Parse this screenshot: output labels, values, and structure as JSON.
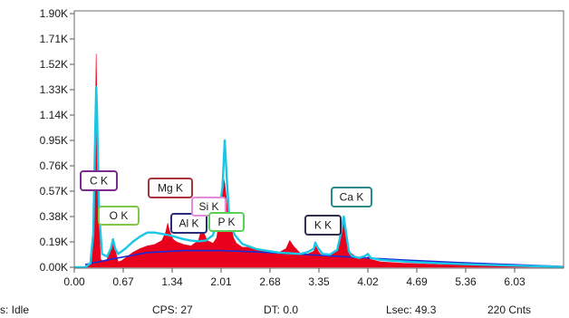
{
  "chart_data": {
    "type": "area",
    "title": "",
    "xlabel": "",
    "ylabel": "",
    "xlim": [
      0.0,
      6.7
    ],
    "ylim": [
      0,
      1900
    ],
    "x_ticks": [
      "0.00",
      "0.67",
      "1.34",
      "2.01",
      "2.68",
      "3.35",
      "4.02",
      "4.69",
      "5.36",
      "6.03"
    ],
    "y_ticks": [
      "1.90K",
      "1.71K",
      "1.52K",
      "1.33K",
      "1.14K",
      "0.95K",
      "0.76K",
      "0.57K",
      "0.38K",
      "0.19K",
      "0.00K"
    ],
    "series": [
      {
        "role": "measured",
        "color": "#e8001c",
        "x": [
          0.0,
          0.1,
          0.2,
          0.24,
          0.27,
          0.3,
          0.33,
          0.36,
          0.4,
          0.45,
          0.5,
          0.53,
          0.56,
          0.6,
          0.65,
          0.7,
          0.8,
          0.9,
          1.0,
          1.1,
          1.2,
          1.25,
          1.28,
          1.3,
          1.35,
          1.4,
          1.5,
          1.6,
          1.7,
          1.74,
          1.78,
          1.82,
          1.9,
          1.95,
          2.0,
          2.03,
          2.06,
          2.09,
          2.12,
          2.15,
          2.18,
          2.22,
          2.3,
          2.4,
          2.6,
          2.8,
          2.9,
          2.95,
          3.0,
          3.1,
          3.2,
          3.28,
          3.31,
          3.34,
          3.4,
          3.5,
          3.6,
          3.65,
          3.69,
          3.72,
          3.76,
          3.85,
          4.0,
          4.02,
          4.05,
          4.2,
          4.5,
          5.0,
          5.5,
          6.0,
          6.5,
          6.7
        ],
        "y": [
          0,
          0,
          10,
          50,
          350,
          1600,
          450,
          60,
          40,
          60,
          140,
          190,
          130,
          40,
          50,
          70,
          110,
          140,
          160,
          170,
          200,
          260,
          330,
          280,
          210,
          190,
          170,
          160,
          200,
          280,
          250,
          200,
          180,
          220,
          420,
          700,
          630,
          480,
          400,
          300,
          220,
          180,
          150,
          150,
          120,
          110,
          140,
          200,
          160,
          100,
          100,
          120,
          160,
          120,
          80,
          90,
          120,
          300,
          380,
          300,
          120,
          80,
          60,
          80,
          60,
          40,
          30,
          20,
          15,
          10,
          5,
          0
        ]
      },
      {
        "role": "fit",
        "color": "#19c6e6",
        "x": [
          0.0,
          0.15,
          0.22,
          0.26,
          0.29,
          0.3,
          0.31,
          0.34,
          0.38,
          0.45,
          0.5,
          0.53,
          0.56,
          0.6,
          0.7,
          0.8,
          0.9,
          1.0,
          1.1,
          1.2,
          1.3,
          1.4,
          1.5,
          1.6,
          1.7,
          1.8,
          1.9,
          1.95,
          1.98,
          2.03,
          2.06,
          2.09,
          2.12,
          2.15,
          2.2,
          2.3,
          2.5,
          2.8,
          3.1,
          3.2,
          3.28,
          3.3,
          3.33,
          3.4,
          3.5,
          3.6,
          3.65,
          3.69,
          3.72,
          3.76,
          3.8,
          3.9,
          3.98,
          4.02,
          4.06,
          4.2,
          4.6,
          5.0,
          5.5,
          6.0,
          6.5,
          6.7
        ],
        "y": [
          0,
          0,
          30,
          250,
          1100,
          1350,
          1200,
          400,
          100,
          80,
          140,
          210,
          140,
          100,
          140,
          190,
          230,
          260,
          260,
          250,
          240,
          225,
          210,
          200,
          195,
          200,
          240,
          380,
          420,
          600,
          950,
          650,
          380,
          300,
          240,
          175,
          135,
          110,
          100,
          115,
          140,
          185,
          150,
          100,
          95,
          130,
          250,
          380,
          260,
          120,
          85,
          70,
          85,
          100,
          70,
          55,
          40,
          30,
          20,
          12,
          6,
          0
        ]
      }
    ],
    "baseline": {
      "color": "#1a2bd6",
      "x": [
        0.15,
        0.5,
        1.0,
        1.5,
        2.0,
        2.5,
        3.0,
        3.5,
        4.0,
        4.5,
        5.0,
        5.5,
        6.0,
        6.5,
        6.7
      ],
      "y": [
        20,
        60,
        110,
        125,
        125,
        115,
        100,
        85,
        70,
        55,
        42,
        30,
        20,
        10,
        5
      ]
    },
    "annotations": [
      {
        "label": "C  K",
        "color": "#7a2b8c"
      },
      {
        "label": "O  K",
        "color": "#7ec84a"
      },
      {
        "label": "Mg K",
        "color": "#a7333a"
      },
      {
        "label": "Al K",
        "color": "#2a2a7a"
      },
      {
        "label": "Si K",
        "color": "#e38ae0"
      },
      {
        "label": "P  K",
        "color": "#59d159"
      },
      {
        "label": "K  K",
        "color": "#2f2f4f"
      },
      {
        "label": "Ca K",
        "color": "#2a8a8a"
      }
    ]
  },
  "status": {
    "state": "s: Idle",
    "cps": "CPS: 27",
    "dt": "DT: 0.0",
    "lsec": "Lsec: 49.3",
    "counts": "220 Cnts"
  }
}
